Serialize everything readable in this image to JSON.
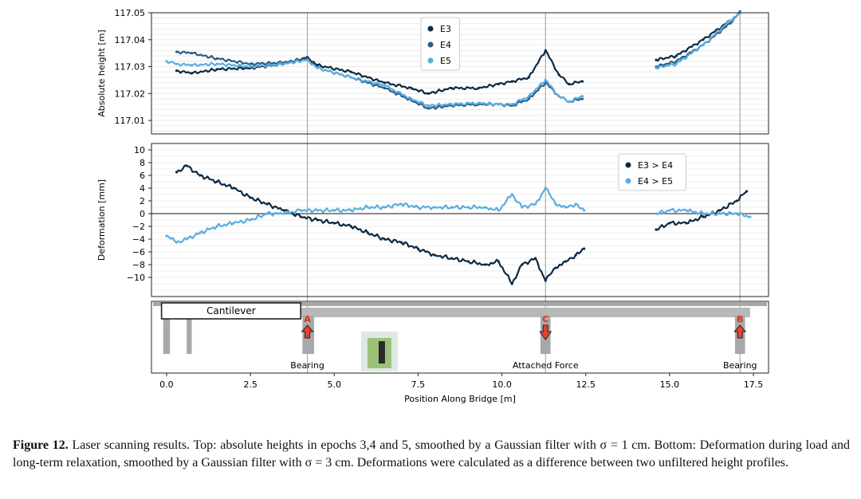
{
  "chart_data": [
    {
      "type": "line",
      "ylabel": "Absolute height [m]",
      "ylim": [
        117.005,
        117.05
      ],
      "yticks": [
        "117.01",
        "117.02",
        "117.03",
        "117.04",
        "117.05"
      ],
      "xlim": [
        -0.45,
        17.95
      ],
      "grid": true,
      "legend_position": "top-center",
      "series": [
        {
          "name": "E3",
          "color": "#0d2a44",
          "x": [
            0.3,
            0.75,
            1.5,
            2.5,
            3.5,
            4.2,
            4.5,
            5.5,
            6.5,
            7.3,
            7.8,
            8.5,
            9.3,
            9.9,
            10.3,
            10.8,
            11.3,
            11.7,
            12.0,
            12.4,
            14.6,
            15.2,
            16.0,
            16.8,
            17.1
          ],
          "y": [
            117.0285,
            117.0275,
            117.029,
            117.0295,
            117.031,
            117.0335,
            117.0305,
            117.028,
            117.024,
            117.022,
            117.02,
            117.022,
            117.022,
            117.0235,
            117.0245,
            117.026,
            117.036,
            117.027,
            117.0235,
            117.0245,
            117.0325,
            117.034,
            117.04,
            117.047,
            117.05
          ]
        },
        {
          "name": "E4",
          "color": "#2a5d8a",
          "x": [
            0.3,
            0.75,
            1.5,
            2.5,
            3.5,
            4.2,
            4.5,
            5.5,
            6.5,
            7.3,
            7.8,
            8.5,
            9.3,
            9.9,
            10.3,
            10.8,
            11.3,
            11.7,
            12.0,
            12.4,
            14.6,
            15.2,
            16.0,
            16.8,
            17.1
          ],
          "y": [
            117.0355,
            117.035,
            117.033,
            117.031,
            117.0315,
            117.033,
            117.0295,
            117.026,
            117.022,
            117.0175,
            117.0145,
            117.0155,
            117.016,
            117.016,
            117.0155,
            117.018,
            117.024,
            117.019,
            117.017,
            117.018,
            117.03,
            117.032,
            117.038,
            117.046,
            117.0505
          ]
        },
        {
          "name": "E5",
          "color": "#5aaee0",
          "x": [
            0.0,
            0.3,
            0.75,
            1.5,
            2.5,
            3.5,
            4.2,
            4.5,
            5.5,
            6.5,
            7.3,
            7.8,
            8.5,
            9.3,
            9.9,
            10.3,
            10.8,
            11.3,
            11.7,
            12.0,
            12.4,
            14.6,
            15.2,
            16.0,
            16.8,
            17.1
          ],
          "y": [
            117.032,
            117.031,
            117.0305,
            117.031,
            117.03,
            117.031,
            117.0325,
            117.0295,
            117.026,
            117.023,
            117.018,
            117.0155,
            117.016,
            117.0165,
            117.016,
            117.016,
            117.019,
            117.025,
            117.019,
            117.017,
            117.019,
            117.0295,
            117.031,
            117.038,
            117.047,
            117.05
          ]
        }
      ]
    },
    {
      "type": "line",
      "ylabel": "Deformation [mm]",
      "ylim": [
        -13,
        11
      ],
      "yticks": [
        "10",
        "8",
        "6",
        "4",
        "2",
        "0",
        "−2",
        "−4",
        "−6",
        "−8",
        "−10"
      ],
      "xlim": [
        -0.45,
        17.95
      ],
      "grid": true,
      "legend_position": "top-right",
      "series": [
        {
          "name": "E3 > E4",
          "color": "#0d2a44",
          "x": [
            0.3,
            0.6,
            1.0,
            1.5,
            2.0,
            2.5,
            3.0,
            3.5,
            4.0,
            4.5,
            5.0,
            5.5,
            6.0,
            6.5,
            7.0,
            7.5,
            8.0,
            8.5,
            9.0,
            9.5,
            9.9,
            10.3,
            10.6,
            11.0,
            11.3,
            11.6,
            11.9,
            12.2,
            12.45,
            14.6,
            15.0,
            15.5,
            16.0,
            16.5,
            17.0,
            17.3
          ],
          "y": [
            6.5,
            7.5,
            6.0,
            5.0,
            4.0,
            2.5,
            1.5,
            0.5,
            -0.5,
            -1.0,
            -1.5,
            -2.0,
            -3.0,
            -4.0,
            -4.5,
            -5.5,
            -6.5,
            -7.0,
            -7.5,
            -8.0,
            -7.5,
            -11.0,
            -8.0,
            -7.0,
            -10.5,
            -8.5,
            -7.5,
            -6.5,
            -5.5,
            -2.5,
            -1.5,
            -1.5,
            -0.5,
            0.5,
            2.0,
            3.5
          ]
        },
        {
          "name": "E4 > E5",
          "color": "#5aaee0",
          "x": [
            0.0,
            0.3,
            0.6,
            1.0,
            1.5,
            2.0,
            2.5,
            3.0,
            3.5,
            4.0,
            4.5,
            5.0,
            5.5,
            6.0,
            6.5,
            7.0,
            7.5,
            8.0,
            8.5,
            9.0,
            9.5,
            9.9,
            10.3,
            10.6,
            11.0,
            11.3,
            11.6,
            11.9,
            12.2,
            12.45,
            14.6,
            15.0,
            15.5,
            16.0,
            16.5,
            17.0,
            17.4
          ],
          "y": [
            -3.5,
            -4.5,
            -4.0,
            -3.0,
            -2.0,
            -1.5,
            -1.0,
            0.0,
            0.0,
            0.5,
            0.5,
            0.5,
            0.5,
            1.0,
            1.0,
            1.5,
            1.0,
            1.0,
            1.0,
            1.0,
            1.0,
            0.5,
            3.0,
            1.0,
            1.5,
            4.0,
            1.5,
            1.0,
            1.5,
            0.5,
            0.0,
            0.5,
            0.5,
            0.0,
            0.0,
            0.0,
            -0.5
          ]
        }
      ]
    },
    {
      "type": "other",
      "xlabel": "Position Along Bridge [m]",
      "xlim": [
        -0.45,
        17.95
      ],
      "xticks": [
        "0.0",
        "2.5",
        "5.0",
        "7.5",
        "10.0",
        "12.5",
        "15.0",
        "17.5"
      ],
      "x_tick_values": [
        0,
        2.5,
        5,
        7.5,
        10,
        12.5,
        15,
        17.5
      ],
      "cantilever_label": "Cantilever",
      "markers": [
        {
          "letter": "A",
          "x": 4.2,
          "direction": "up",
          "label": "Bearing"
        },
        {
          "letter": "C",
          "x": 11.3,
          "direction": "down",
          "label": "Attached Force"
        },
        {
          "letter": "B",
          "x": 17.1,
          "direction": "up",
          "label": "Bearing"
        }
      ]
    }
  ],
  "caption": {
    "lead": "Figure 12.",
    "text": " Laser scanning results. Top: absolute heights in epochs 3,4 and 5, smoothed by a Gaussian filter with σ = 1 cm. Bottom: Deformation during load and long-term relaxation, smoothed by a Gaussian filter with σ = 3 cm. Deformations were calculated as a difference between two unfiltered height profiles."
  },
  "colors": {
    "grid": "#e6e6e6",
    "structure": "#a8a8a8",
    "arrow": "#e8412f",
    "marker_text": "#e03020"
  }
}
